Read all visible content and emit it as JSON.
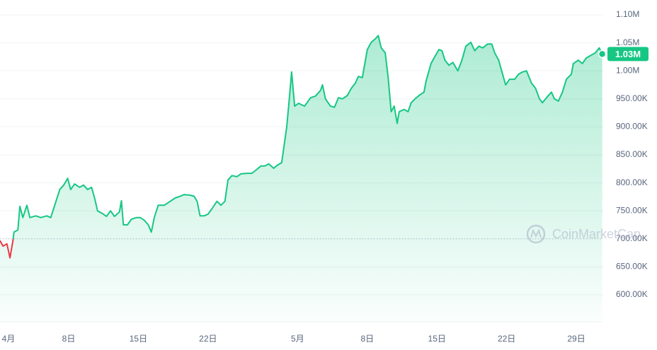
{
  "chart_data": {
    "type": "line",
    "x": [
      0.1,
      0.4,
      0.8,
      1.1,
      1.4,
      1.5,
      1.9,
      2.1,
      2.4,
      2.8,
      3.1,
      3.7,
      4.2,
      4.8,
      5.2,
      5.6,
      6.1,
      6.5,
      6.9,
      7.2,
      7.6,
      8.1,
      8.5,
      8.9,
      9.3,
      9.6,
      9.9,
      10.4,
      10.8,
      11.2,
      11.6,
      12.1,
      12.3,
      12.5,
      12.9,
      13.3,
      13.8,
      14.2,
      14.6,
      15.0,
      15.3,
      15.6,
      16.0,
      16.6,
      17.2,
      17.7,
      18.2,
      18.6,
      19.2,
      19.6,
      19.9,
      20.2,
      20.6,
      21.0,
      21.4,
      21.9,
      22.3,
      22.7,
      23.0,
      23.4,
      23.9,
      24.3,
      24.9,
      25.4,
      25.9,
      26.3,
      26.7,
      27.1,
      27.6,
      28.0,
      28.4,
      28.9,
      29.1,
      29.4,
      29.7,
      30.1,
      30.7,
      31.3,
      31.8,
      32.3,
      32.5,
      32.8,
      33.3,
      33.7,
      34.1,
      34.5,
      35.0,
      35.4,
      35.8,
      36.1,
      36.5,
      37.0,
      37.4,
      37.8,
      38.1,
      38.4,
      38.8,
      39.1,
      39.4,
      39.7,
      40.0,
      40.2,
      40.7,
      41.1,
      41.4,
      41.8,
      42.2,
      42.7,
      42.9,
      43.4,
      43.8,
      44.2,
      44.5,
      44.8,
      45.2,
      45.6,
      46.1,
      46.5,
      46.9,
      47.4,
      47.8,
      48.2,
      48.6,
      49.1,
      49.5,
      49.8,
      50.2,
      50.5,
      50.9,
      51.3,
      51.8,
      52.2,
      52.6,
      53.0,
      53.5,
      53.9,
      54.3,
      54.6,
      55.0,
      55.5,
      55.8,
      56.2,
      56.6,
      57.0,
      57.5,
      57.7,
      58.2,
      58.6,
      59.0,
      59.5,
      59.9,
      60.3,
      60.6
    ],
    "series": [
      {
        "color": "#16c784",
        "values": [
          697000,
          687000,
          691000,
          666000,
          697000,
          712000,
          716000,
          758000,
          738000,
          760000,
          738000,
          741000,
          738000,
          741000,
          738000,
          760000,
          788000,
          796000,
          808000,
          788000,
          798000,
          792000,
          796000,
          788000,
          792000,
          773000,
          750000,
          745000,
          740000,
          750000,
          740000,
          748000,
          768000,
          725000,
          725000,
          735000,
          738000,
          738000,
          733000,
          725000,
          712000,
          738000,
          760000,
          760000,
          767000,
          773000,
          776000,
          779000,
          778000,
          776000,
          767000,
          741000,
          741000,
          744000,
          754000,
          767000,
          760000,
          767000,
          805000,
          813000,
          811000,
          816000,
          817000,
          817000,
          824000,
          830000,
          830000,
          834000,
          826000,
          832000,
          836000,
          899000,
          937000,
          998000,
          937000,
          942000,
          937000,
          952000,
          955000,
          965000,
          975000,
          950000,
          937000,
          935000,
          952000,
          950000,
          956000,
          969000,
          978000,
          990000,
          988000,
          1038000,
          1051000,
          1057000,
          1063000,
          1041000,
          1032000,
          988000,
          927000,
          937000,
          906000,
          927000,
          931000,
          927000,
          943000,
          950000,
          956000,
          962000,
          981000,
          1013000,
          1026000,
          1038000,
          1036000,
          1019000,
          1010000,
          1015000,
          1000000,
          1019000,
          1044000,
          1051000,
          1036000,
          1044000,
          1041000,
          1048000,
          1048000,
          1032000,
          1019000,
          1000000,
          975000,
          985000,
          985000,
          994000,
          998000,
          1000000,
          978000,
          969000,
          950000,
          943000,
          952000,
          962000,
          950000,
          946000,
          962000,
          985000,
          994000,
          1013000,
          1019000,
          1013000,
          1023000,
          1028000,
          1032000,
          1041000,
          1030000
        ]
      }
    ],
    "baseline": 700000,
    "color_below": "#ea3943",
    "xlim": [
      0.1,
      60.7
    ],
    "xticks": [
      {
        "value": 0,
        "label": "4月"
      },
      {
        "value": 7,
        "label": "8日"
      },
      {
        "value": 14,
        "label": "15日"
      },
      {
        "value": 21,
        "label": "22日"
      },
      {
        "value": 30,
        "label": "5月"
      },
      {
        "value": 37,
        "label": "8日"
      },
      {
        "value": 44,
        "label": "15日"
      },
      {
        "value": 51,
        "label": "22日"
      },
      {
        "value": 58,
        "label": "29日"
      }
    ],
    "ylim": [
      552000,
      1126500
    ],
    "yticks": [
      {
        "value": 600000,
        "label": "600.00K"
      },
      {
        "value": 650000,
        "label": "650.00K"
      },
      {
        "value": 700000,
        "label": "700.00K"
      },
      {
        "value": 750000,
        "label": "750.00K"
      },
      {
        "value": 800000,
        "label": "800.00K"
      },
      {
        "value": 850000,
        "label": "850.00K"
      },
      {
        "value": 900000,
        "label": "900.00K"
      },
      {
        "value": 950000,
        "label": "950.00K"
      },
      {
        "value": 1000000,
        "label": "1.00M"
      },
      {
        "value": 1050000,
        "label": "1.05M"
      },
      {
        "value": 1100000,
        "label": "1.10M"
      }
    ],
    "grid": true,
    "last_label": "1.03M",
    "watermark": "CoinMarketCap"
  }
}
